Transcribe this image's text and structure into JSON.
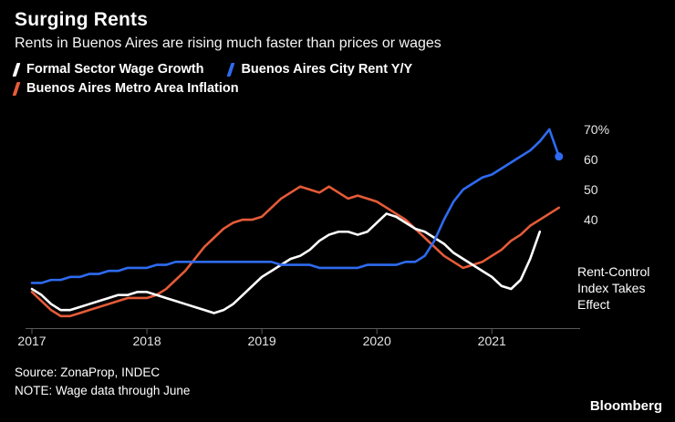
{
  "chart_data": {
    "type": "line",
    "title": "Surging Rents",
    "subtitle": "Rents in Buenos Aires are rising much faster than prices or wages",
    "x_unit": "year (monthly points)",
    "xlim": [
      2017,
      2021.72
    ],
    "ylim": [
      4,
      73
    ],
    "xticks": [
      2017,
      2018,
      2019,
      2020,
      2021
    ],
    "yticks": [
      {
        "value": 40,
        "label": "40"
      },
      {
        "value": 50,
        "label": "50"
      },
      {
        "value": 60,
        "label": "60"
      },
      {
        "value": 70,
        "label": "70%"
      }
    ],
    "grid": false,
    "legend_position": "top",
    "series": [
      {
        "name": "Formal Sector Wage Growth",
        "color": "#ffffff",
        "start_year": 2017,
        "end_marker": false,
        "values": [
          17,
          15,
          12,
          10,
          10,
          11,
          12,
          13,
          14,
          15,
          15,
          16,
          16,
          15,
          14,
          13,
          12,
          11,
          10,
          9,
          10,
          12,
          15,
          18,
          21,
          23,
          25,
          27,
          28,
          30,
          33,
          35,
          36,
          36,
          35,
          36,
          39,
          42,
          41,
          39,
          37,
          36,
          34,
          32,
          29,
          27,
          25,
          23,
          21,
          18,
          17,
          20,
          27,
          36
        ]
      },
      {
        "name": "Buenos Aires City Rent Y/Y",
        "color": "#2e6bf0",
        "start_year": 2017,
        "end_marker": true,
        "values": [
          19,
          19,
          20,
          20,
          21,
          21,
          22,
          22,
          23,
          23,
          24,
          24,
          24,
          25,
          25,
          26,
          26,
          26,
          26,
          26,
          26,
          26,
          26,
          26,
          26,
          26,
          25,
          25,
          25,
          25,
          24,
          24,
          24,
          24,
          24,
          25,
          25,
          25,
          25,
          26,
          26,
          28,
          33,
          40,
          46,
          50,
          52,
          54,
          55,
          57,
          59,
          61,
          63,
          66,
          70,
          61
        ]
      },
      {
        "name": "Buenos Aires Metro Area Inflation",
        "color": "#e55b38",
        "start_year": 2017,
        "end_marker": false,
        "values": [
          16,
          13,
          10,
          8,
          8,
          9,
          10,
          11,
          12,
          13,
          14,
          14,
          14,
          15,
          17,
          20,
          23,
          27,
          31,
          34,
          37,
          39,
          40,
          40,
          41,
          44,
          47,
          49,
          51,
          50,
          49,
          51,
          49,
          47,
          48,
          47,
          46,
          44,
          42,
          40,
          37,
          34,
          31,
          28,
          26,
          24,
          25,
          26,
          28,
          30,
          33,
          35,
          38,
          40,
          42,
          44
        ]
      }
    ],
    "annotation": {
      "text": "Rent-Control\nIndex Takes\nEffect"
    },
    "axis_color": "#5a5a5a",
    "tick_label_color": "#e6e6e6"
  },
  "footer": {
    "source_line": "Source: ZonaProp, INDEC",
    "note_line": "NOTE: Wage data through June",
    "logo": "Bloomberg"
  }
}
